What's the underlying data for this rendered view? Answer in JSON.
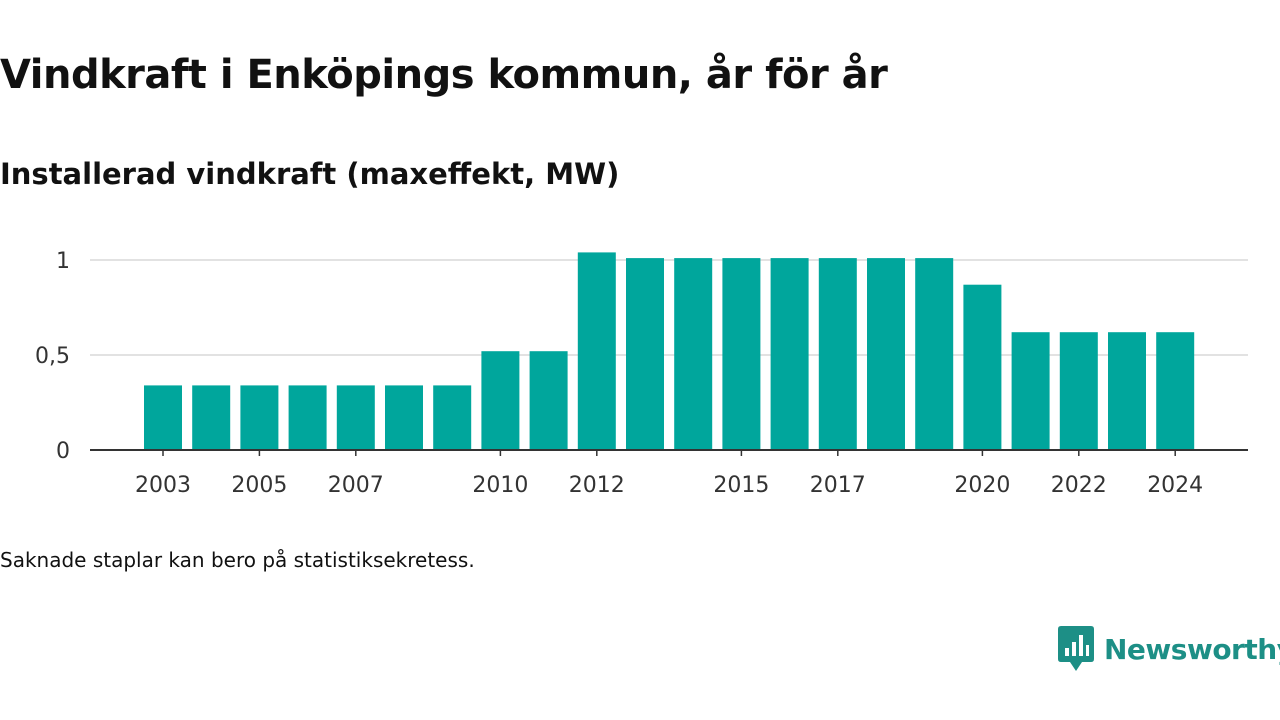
{
  "header": {
    "title": "Vindkraft i Enköpings kommun, år för år",
    "subtitle": "Installerad vindkraft (maxeffekt, MW)"
  },
  "footnote": "Saknade staplar kan bero på statistiksekretess.",
  "brand": {
    "name": "Newsworthy",
    "icon": "newsworthy-logo-icon",
    "color": "#1d8f86"
  },
  "chart_data": {
    "type": "bar",
    "title": "Vindkraft i Enköpings kommun, år för år",
    "subtitle": "Installerad vindkraft (maxeffekt, MW)",
    "categories": [
      "2003",
      "2004",
      "2005",
      "2006",
      "2007",
      "2008",
      "2009",
      "2010",
      "2011",
      "2012",
      "2013",
      "2014",
      "2015",
      "2016",
      "2017",
      "2018",
      "2019",
      "2020",
      "2021",
      "2022",
      "2023",
      "2024"
    ],
    "values": [
      0.34,
      0.34,
      0.34,
      0.34,
      0.34,
      0.34,
      0.34,
      0.52,
      0.52,
      1.04,
      1.01,
      1.01,
      1.01,
      1.01,
      1.01,
      1.01,
      1.01,
      0.87,
      0.62,
      0.62,
      0.62,
      0.62
    ],
    "x_tick_labels": [
      "2003",
      "2005",
      "2007",
      "2010",
      "2012",
      "2015",
      "2017",
      "2020",
      "2022",
      "2024"
    ],
    "y_ticks": [
      0,
      0.5,
      1
    ],
    "y_tick_labels": [
      "0",
      "0,5",
      "1"
    ],
    "ylim": [
      0,
      1.1
    ],
    "grid": true,
    "bar_color": "#00a69c"
  }
}
